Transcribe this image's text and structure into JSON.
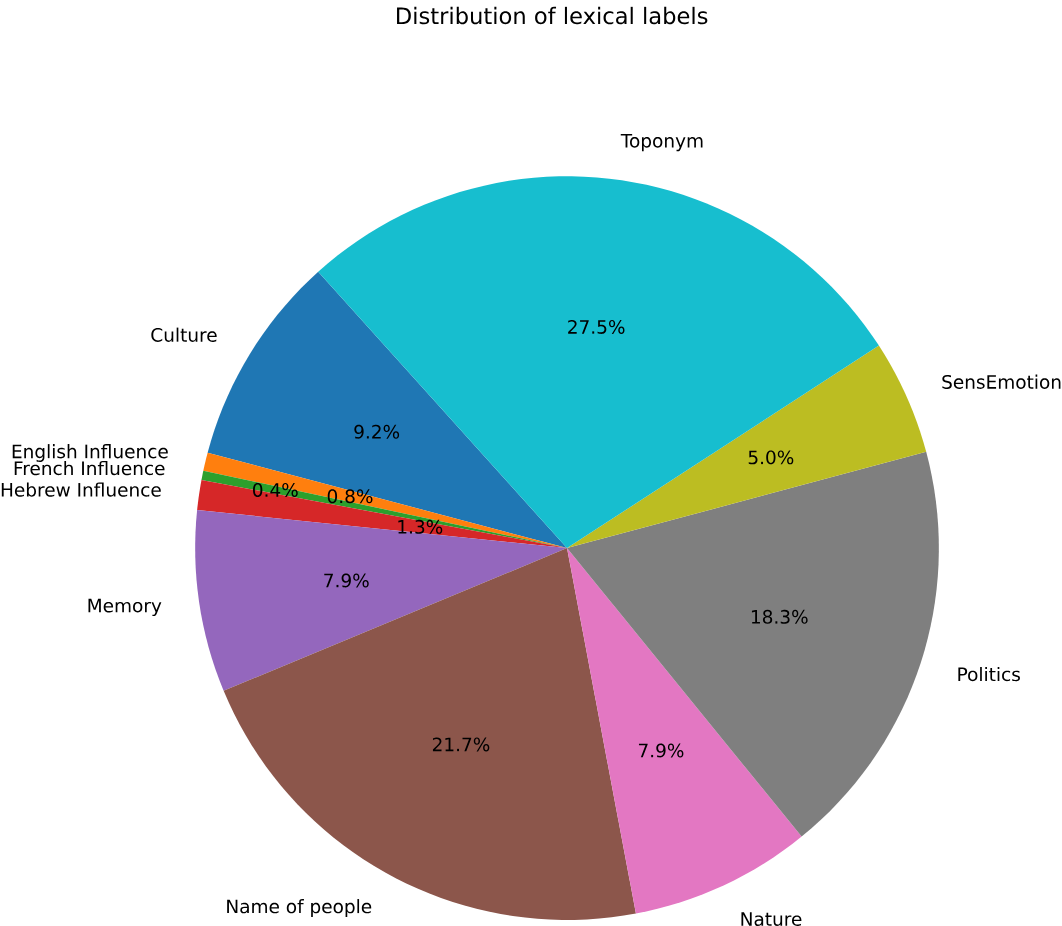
{
  "chart_data": {
    "type": "pie",
    "title": "Distribution of lexical labels",
    "categories": [
      "Culture",
      "English Influence",
      "French Influence",
      "Hebrew Influence",
      "Memory",
      "Name of people",
      "Nature",
      "Politics",
      "SensEmotion",
      "Toponym"
    ],
    "values": [
      9.2,
      0.8,
      0.4,
      1.3,
      7.9,
      21.7,
      7.9,
      18.3,
      5.0,
      27.5
    ],
    "value_labels": [
      "9.2%",
      "0.8%",
      "0.4%",
      "1.3%",
      "7.9%",
      "21.7%",
      "7.9%",
      "18.3%",
      "5.0%",
      "27.5%"
    ],
    "colors": [
      "#1f77b4",
      "#ff7f0e",
      "#2ca02c",
      "#d62728",
      "#9467bd",
      "#8c564b",
      "#e377c2",
      "#7f7f7f",
      "#bcbd22",
      "#17becf"
    ]
  }
}
